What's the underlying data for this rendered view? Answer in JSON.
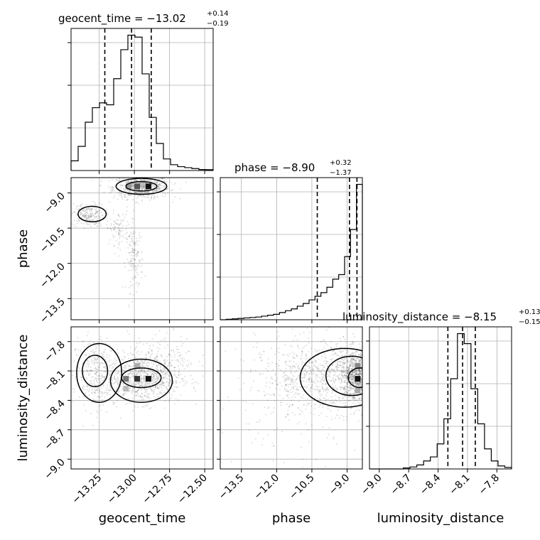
{
  "chart_data": {
    "type": "corner",
    "parameters": [
      "geocent_time",
      "phase",
      "luminosity_distance"
    ],
    "grid": true,
    "quantile_lines": "dashed",
    "panels": {
      "geocent_time": {
        "range": [
          -13.45,
          -12.44
        ],
        "ticks": [
          -13.25,
          -13.0,
          -12.75,
          -12.5
        ],
        "tick_labels": [
          "−13.25",
          "−13.00",
          "−12.75",
          "−12.50"
        ],
        "axis_label": "geocent_time",
        "title_prefix": "geocent_time = ",
        "median": "−13.02",
        "plus": "+0.14",
        "minus": "−0.19",
        "quantiles": [
          -13.21,
          -13.02,
          -12.88
        ],
        "hist": [
          0.1,
          0.25,
          0.5,
          0.65,
          0.7,
          0.68,
          0.95,
          1.25,
          1.4,
          1.38,
          1.0,
          0.55,
          0.28,
          0.12,
          0.06,
          0.04,
          0.03,
          0.02,
          0.01,
          0.008
        ]
      },
      "phase": {
        "range": [
          -14.4,
          -8.35
        ],
        "ticks": [
          -13.5,
          -12.0,
          -10.5,
          -9.0
        ],
        "tick_labels": [
          "−13.5",
          "−12.0",
          "−10.5",
          "−9.0"
        ],
        "y_tick_labels": [
          "−9.0",
          "−10.5",
          "−12.0",
          "−13.5"
        ],
        "axis_label": "phase",
        "title_prefix": "phase = ",
        "median": "−8.90",
        "plus": "+0.32",
        "minus": "−1.37",
        "quantiles": [
          -10.27,
          -8.9,
          -8.58
        ],
        "hist": [
          0.0,
          0.005,
          0.01,
          0.015,
          0.02,
          0.025,
          0.03,
          0.04,
          0.05,
          0.06,
          0.08,
          0.1,
          0.12,
          0.15,
          0.18,
          0.22,
          0.26,
          0.3,
          0.36,
          0.45,
          0.5,
          0.7,
          1.0,
          1.5
        ]
      },
      "luminosity_distance": {
        "range": [
          -9.1,
          -7.65
        ],
        "ticks": [
          -9.0,
          -8.7,
          -8.4,
          -8.1,
          -7.8
        ],
        "tick_labels": [
          "−9.0",
          "−8.7",
          "−8.4",
          "−8.1",
          "−7.8"
        ],
        "axis_label": "luminosity_distance",
        "title_prefix": "luminosity_distance = ",
        "median": "−8.15",
        "plus": "+0.13",
        "minus": "−0.15",
        "quantiles": [
          -8.3,
          -8.15,
          -8.02
        ],
        "hist": [
          0.0,
          0.0,
          0.0,
          0.0,
          0.0,
          0.01,
          0.02,
          0.04,
          0.08,
          0.12,
          0.25,
          0.5,
          0.9,
          1.35,
          1.25,
          0.8,
          0.45,
          0.2,
          0.08,
          0.03,
          0.015
        ]
      }
    },
    "contours": {
      "phase_vs_geocent_time": {
        "x_param": "geocent_time",
        "y_param": "phase",
        "blobs": [
          {
            "cx": -12.95,
            "cy": -8.75,
            "sx": 0.1,
            "sy": 0.25,
            "n": 700
          },
          {
            "cx": -13.33,
            "cy": -9.95,
            "sx": 0.06,
            "sy": 0.25,
            "n": 220
          },
          {
            "cx": -13.12,
            "cy": -10.5,
            "sx": 0.04,
            "sy": 0.35,
            "n": 90
          },
          {
            "cx": -13.0,
            "cy": -11.8,
            "sx": 0.03,
            "sy": 0.7,
            "n": 150
          }
        ],
        "cells": [
          {
            "x": -12.98,
            "y": -8.72,
            "shade": "#555555"
          },
          {
            "x": -12.9,
            "y": -8.72,
            "shade": "#111111"
          },
          {
            "x": -13.04,
            "y": -8.72,
            "shade": "#999999"
          },
          {
            "x": -12.94,
            "y": -8.57,
            "shade": "#bbbbbb"
          }
        ],
        "loops": [
          {
            "cx": -12.95,
            "cy": -8.72,
            "rx": 0.11,
            "ry": 0.2
          },
          {
            "cx": -12.95,
            "cy": -8.72,
            "rx": 0.18,
            "ry": 0.34
          },
          {
            "cx": -13.3,
            "cy": -9.9,
            "rx": 0.1,
            "ry": 0.33
          }
        ]
      },
      "ld_vs_geocent_time": {
        "x_param": "geocent_time",
        "y_param": "luminosity_distance",
        "blobs": [
          {
            "cx": -12.93,
            "cy": -8.18,
            "sx": 0.13,
            "sy": 0.12,
            "n": 800
          },
          {
            "cx": -13.28,
            "cy": -8.12,
            "sx": 0.08,
            "sy": 0.18,
            "n": 350
          },
          {
            "cx": -12.8,
            "cy": -7.95,
            "sx": 0.12,
            "sy": 0.12,
            "n": 150
          }
        ],
        "cells": [
          {
            "x": -13.06,
            "y": -8.18,
            "shade": "#777777"
          },
          {
            "x": -12.98,
            "y": -8.18,
            "shade": "#333333"
          },
          {
            "x": -12.9,
            "y": -8.18,
            "shade": "#111111"
          },
          {
            "x": -12.98,
            "y": -8.05,
            "shade": "#aaaaaa"
          },
          {
            "x": -13.06,
            "y": -8.28,
            "shade": "#bbbbbb"
          }
        ],
        "loops": [
          {
            "cx": -12.95,
            "cy": -8.17,
            "rx": 0.14,
            "ry": 0.1
          },
          {
            "cx": -12.95,
            "cy": -8.2,
            "rx": 0.22,
            "ry": 0.22
          },
          {
            "cx": -13.28,
            "cy": -8.1,
            "rx": 0.09,
            "ry": 0.16
          },
          {
            "cx": -13.25,
            "cy": -8.12,
            "rx": 0.16,
            "ry": 0.3
          }
        ]
      },
      "ld_vs_phase": {
        "x_param": "phase",
        "y_param": "luminosity_distance",
        "blobs": [
          {
            "cx": -8.6,
            "cy": -8.15,
            "sx": 0.35,
            "sy": 0.13,
            "n": 900
          },
          {
            "cx": -10.0,
            "cy": -8.15,
            "sx": 1.2,
            "sy": 0.18,
            "n": 700
          },
          {
            "cx": -11.5,
            "cy": -8.3,
            "sx": 1.5,
            "sy": 0.3,
            "n": 250
          }
        ],
        "cells": [
          {
            "x": -8.55,
            "y": -8.18,
            "shade": "#111111"
          },
          {
            "x": -8.55,
            "y": -8.05,
            "shade": "#888888"
          },
          {
            "x": -8.55,
            "y": -8.3,
            "shade": "#aaaaaa"
          }
        ],
        "loops": [
          {
            "cx": -8.45,
            "cy": -8.17,
            "rx": 0.5,
            "ry": 0.1
          },
          {
            "cx": -8.8,
            "cy": -8.15,
            "rx": 1.1,
            "ry": 0.2
          },
          {
            "cx": -9.1,
            "cy": -8.17,
            "rx": 1.9,
            "ry": 0.3
          }
        ]
      }
    }
  }
}
